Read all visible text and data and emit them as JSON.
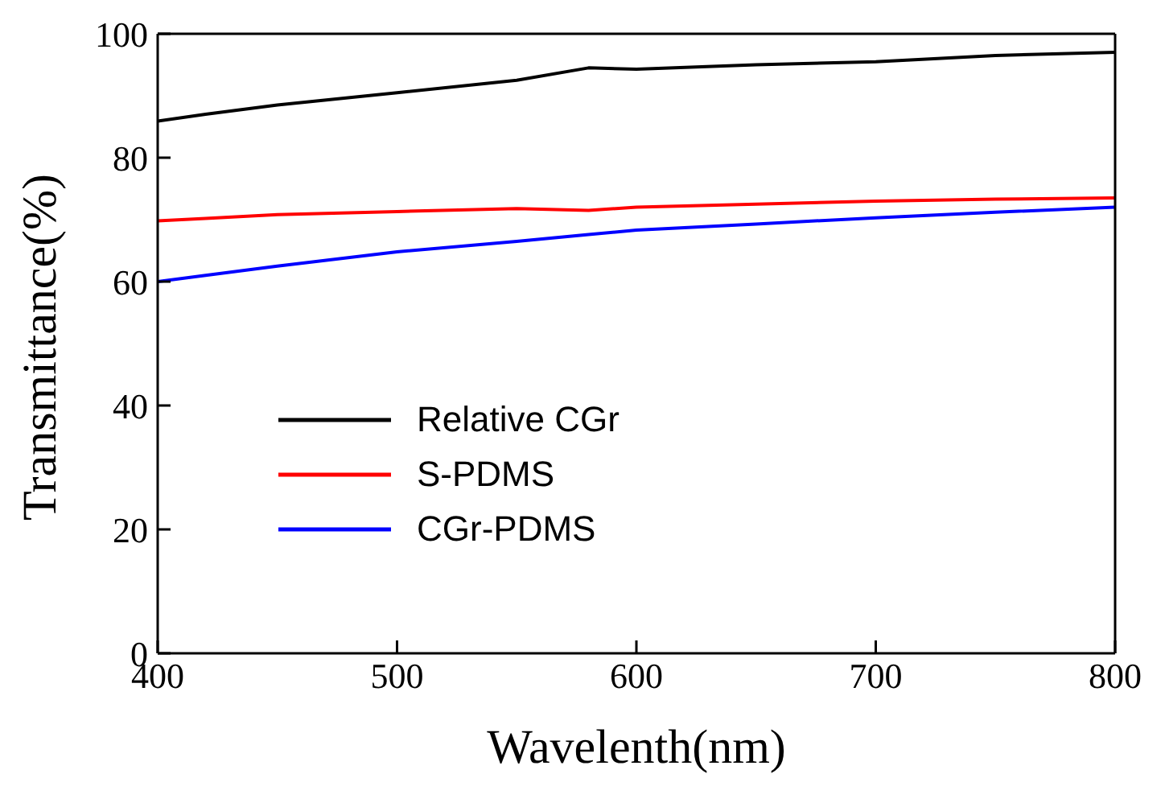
{
  "chart_data": {
    "type": "line",
    "xlabel": "Wavelenth(nm)",
    "ylabel": "Transmittance(%)",
    "x": [
      400,
      420,
      450,
      500,
      550,
      580,
      600,
      650,
      700,
      750,
      800
    ],
    "series": [
      {
        "name": "Relative CGr",
        "color": "#000000",
        "values": [
          85.9,
          87,
          88.5,
          90.5,
          92.5,
          94.5,
          94.3,
          95,
          95.5,
          96.5,
          97
        ]
      },
      {
        "name": "S-PDMS",
        "color": "#ff0000",
        "values": [
          69.8,
          70.2,
          70.8,
          71.3,
          71.8,
          71.5,
          72,
          72.5,
          73,
          73.3,
          73.5
        ]
      },
      {
        "name": "CGr-PDMS",
        "color": "#0000ff",
        "values": [
          60,
          61,
          62.5,
          64.8,
          66.5,
          67.6,
          68.3,
          69.3,
          70.3,
          71.2,
          72
        ]
      }
    ],
    "xlim": [
      400,
      800
    ],
    "xticks": [
      400,
      500,
      600,
      700,
      800
    ],
    "ylim": [
      0,
      100
    ],
    "yticks": [
      0,
      20,
      40,
      60,
      80,
      100
    ],
    "grid": false,
    "legend": "left",
    "marker": "none",
    "line_style": "solid"
  }
}
